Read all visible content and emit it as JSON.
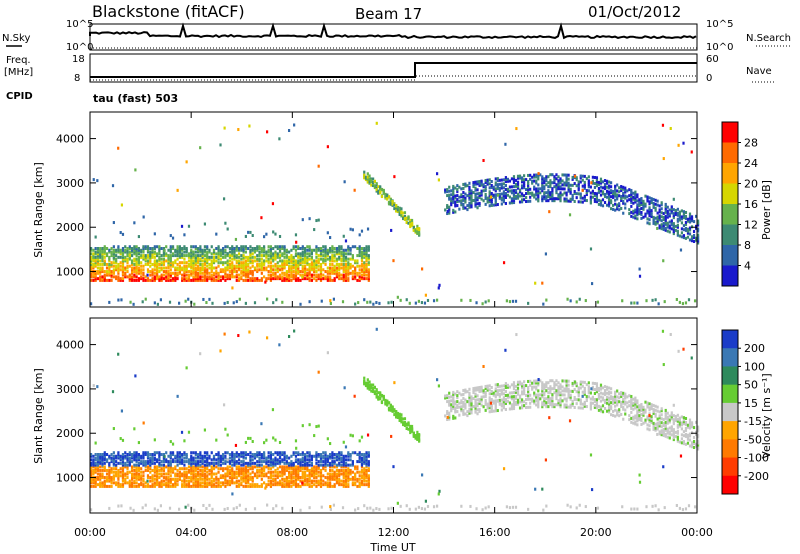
{
  "header": {
    "station": "Blackstone (fitACF)",
    "beam": "Beam 17",
    "date": "01/Oct/2012"
  },
  "status_panels": {
    "nsky_label": "N.Sky",
    "nsearch_label": "N.Search",
    "freq_label_line1": "Freq.",
    "freq_label_line2": "[MHz]",
    "nave_label": "Nave",
    "cpid_label": "CPID",
    "cpid_text": "tau (fast) 503",
    "noise_ticks": [
      "10^5",
      "10^0"
    ],
    "freq_ticks": [
      "18",
      "8"
    ],
    "nave_ticks": [
      "60",
      "0"
    ]
  },
  "chart_data": [
    {
      "type": "heatmap",
      "panel": "power",
      "ylabel": "Slant Range [km]",
      "xlabel": "",
      "xlim": [
        0,
        24
      ],
      "ylim": [
        200,
        4600
      ],
      "y_ticks": [
        1000,
        2000,
        3000,
        4000
      ],
      "colorbar": {
        "label": "Power [dB]",
        "ticks": [
          "28",
          "24",
          "20",
          "16",
          "12",
          "8",
          "4"
        ],
        "colors": [
          "#ff0000",
          "#ff6a00",
          "#ffa500",
          "#d6d600",
          "#66b24c",
          "#3d8a73",
          "#2f66a8",
          "#1a1acc"
        ]
      }
    },
    {
      "type": "heatmap",
      "panel": "velocity",
      "ylabel": "Slant Range [km]",
      "xlabel": "Time UT",
      "xlim": [
        0,
        24
      ],
      "ylim": [
        200,
        4600
      ],
      "x_ticks": [
        "00:00",
        "04:00",
        "08:00",
        "12:00",
        "16:00",
        "20:00",
        "00:00"
      ],
      "y_ticks": [
        1000,
        2000,
        3000,
        4000
      ],
      "colorbar": {
        "label": "Velocity [m s⁻¹]",
        "ticks": [
          "200",
          "100",
          "50",
          "15",
          "-15",
          "-50",
          "-100",
          "-200"
        ],
        "colors": [
          "#1a3cc8",
          "#3a78b4",
          "#2e8a5c",
          "#66cc33",
          "#c8c8c8",
          "#ffa500",
          "#ff7a00",
          "#ff3c00",
          "#ff0000"
        ]
      }
    }
  ]
}
